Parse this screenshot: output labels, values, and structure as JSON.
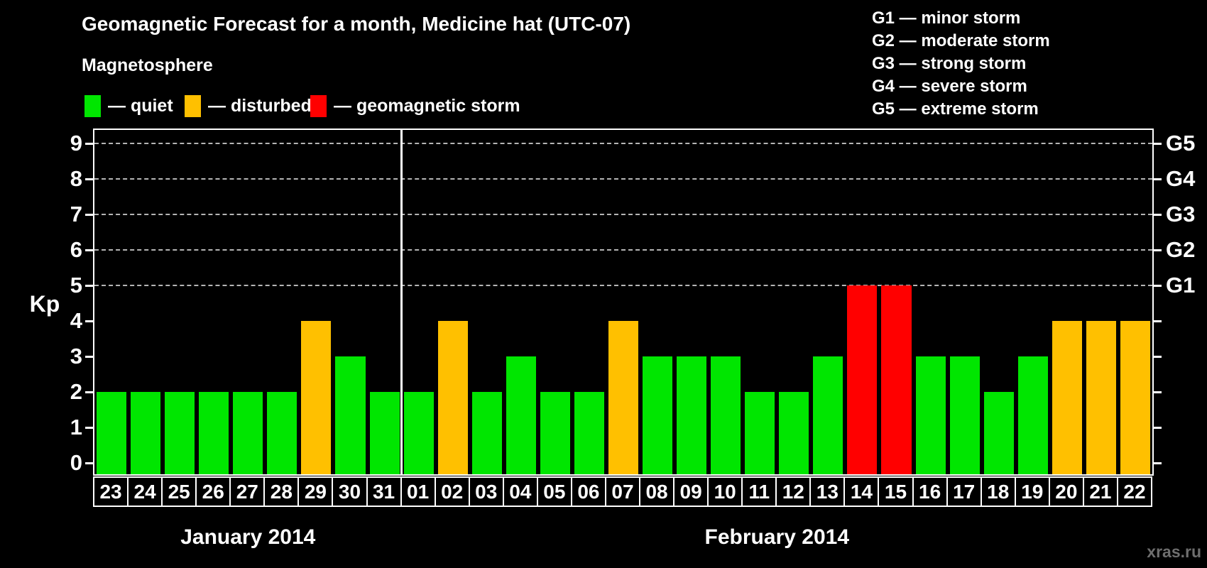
{
  "title": "Geomagnetic Forecast for a month, Medicine hat (UTC-07)",
  "subtitle": "Magnetosphere",
  "legend": {
    "items": [
      {
        "label": "— quiet",
        "state": "quiet",
        "color": "#00e600"
      },
      {
        "label": "— disturbed",
        "state": "disturbed",
        "color": "#ffc000"
      },
      {
        "label": "— geomagnetic storm",
        "state": "storm",
        "color": "#ff0000"
      }
    ]
  },
  "g_legend": {
    "items": [
      "G1 — minor storm",
      "G2 — moderate storm",
      "G3 — strong storm",
      "G4 — severe storm",
      "G5 — extreme storm"
    ]
  },
  "axis": {
    "ylabel": "Kp",
    "kp_ticks": [
      0,
      1,
      2,
      3,
      4,
      5,
      6,
      7,
      8,
      9
    ],
    "g_labels": [
      {
        "label": "G1",
        "value": 5
      },
      {
        "label": "G2",
        "value": 6
      },
      {
        "label": "G3",
        "value": 7
      },
      {
        "label": "G4",
        "value": 8
      },
      {
        "label": "G5",
        "value": 9
      }
    ]
  },
  "watermark": "xras.ru",
  "chart_data": {
    "type": "bar",
    "title": "Geomagnetic Forecast for a month, Medicine hat (UTC-07)",
    "ylabel": "Kp",
    "ylim": [
      -0.32,
      9.38
    ],
    "grid_values": [
      5,
      6,
      7,
      8,
      9
    ],
    "legend_position": "top",
    "colors": {
      "quiet": "#00e600",
      "disturbed": "#ffc000",
      "storm": "#ff0000"
    },
    "months": [
      {
        "label": "January 2014",
        "days": 9
      },
      {
        "label": "February 2014",
        "days": 22
      }
    ],
    "bars": [
      {
        "month": "January 2014",
        "day": "23",
        "value": 2,
        "state": "quiet"
      },
      {
        "month": "January 2014",
        "day": "24",
        "value": 2,
        "state": "quiet"
      },
      {
        "month": "January 2014",
        "day": "25",
        "value": 2,
        "state": "quiet"
      },
      {
        "month": "January 2014",
        "day": "26",
        "value": 2,
        "state": "quiet"
      },
      {
        "month": "January 2014",
        "day": "27",
        "value": 2,
        "state": "quiet"
      },
      {
        "month": "January 2014",
        "day": "28",
        "value": 2,
        "state": "quiet"
      },
      {
        "month": "January 2014",
        "day": "29",
        "value": 4,
        "state": "disturbed"
      },
      {
        "month": "January 2014",
        "day": "30",
        "value": 3,
        "state": "quiet"
      },
      {
        "month": "January 2014",
        "day": "31",
        "value": 2,
        "state": "quiet"
      },
      {
        "month": "February 2014",
        "day": "01",
        "value": 2,
        "state": "quiet"
      },
      {
        "month": "February 2014",
        "day": "02",
        "value": 4,
        "state": "disturbed"
      },
      {
        "month": "February 2014",
        "day": "03",
        "value": 2,
        "state": "quiet"
      },
      {
        "month": "February 2014",
        "day": "04",
        "value": 3,
        "state": "quiet"
      },
      {
        "month": "February 2014",
        "day": "05",
        "value": 2,
        "state": "quiet"
      },
      {
        "month": "February 2014",
        "day": "06",
        "value": 2,
        "state": "quiet"
      },
      {
        "month": "February 2014",
        "day": "07",
        "value": 4,
        "state": "disturbed"
      },
      {
        "month": "February 2014",
        "day": "08",
        "value": 3,
        "state": "quiet"
      },
      {
        "month": "February 2014",
        "day": "09",
        "value": 3,
        "state": "quiet"
      },
      {
        "month": "February 2014",
        "day": "10",
        "value": 3,
        "state": "quiet"
      },
      {
        "month": "February 2014",
        "day": "11",
        "value": 2,
        "state": "quiet"
      },
      {
        "month": "February 2014",
        "day": "12",
        "value": 2,
        "state": "quiet"
      },
      {
        "month": "February 2014",
        "day": "13",
        "value": 3,
        "state": "quiet"
      },
      {
        "month": "February 2014",
        "day": "14",
        "value": 5,
        "state": "storm"
      },
      {
        "month": "February 2014",
        "day": "15",
        "value": 5,
        "state": "storm"
      },
      {
        "month": "February 2014",
        "day": "16",
        "value": 3,
        "state": "quiet"
      },
      {
        "month": "February 2014",
        "day": "17",
        "value": 3,
        "state": "quiet"
      },
      {
        "month": "February 2014",
        "day": "18",
        "value": 2,
        "state": "quiet"
      },
      {
        "month": "February 2014",
        "day": "19",
        "value": 3,
        "state": "quiet"
      },
      {
        "month": "February 2014",
        "day": "20",
        "value": 4,
        "state": "disturbed"
      },
      {
        "month": "February 2014",
        "day": "21",
        "value": 4,
        "state": "disturbed"
      },
      {
        "month": "February 2014",
        "day": "22",
        "value": 4,
        "state": "disturbed"
      }
    ]
  }
}
